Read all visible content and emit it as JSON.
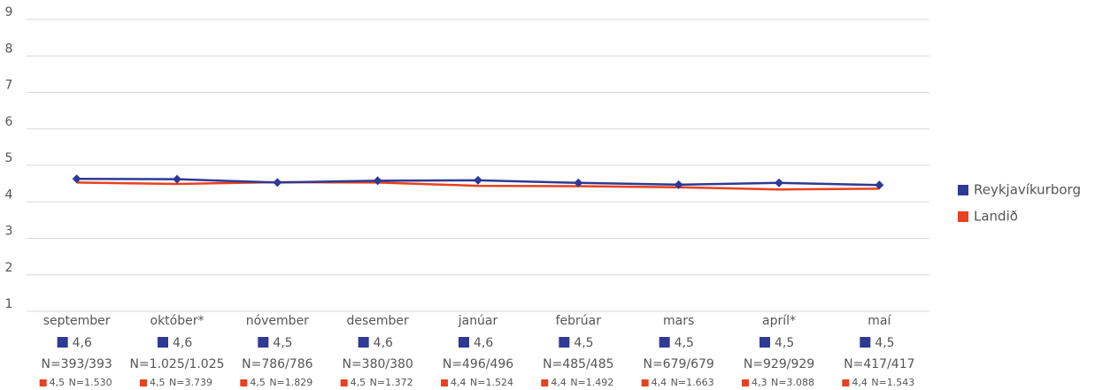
{
  "chart_data": {
    "type": "line",
    "categories": [
      "september",
      "október*",
      "nóvember",
      "desember",
      "janúar",
      "febrúar",
      "mars",
      "apríl*",
      "maí"
    ],
    "series": [
      {
        "name": "Reykjavíkurborg",
        "color": "#2e3a93",
        "values": [
          4.63,
          4.62,
          4.53,
          4.58,
          4.59,
          4.52,
          4.47,
          4.52,
          4.46
        ],
        "value_labels": [
          "4,6",
          "4,6",
          "4,5",
          "4,6",
          "4,6",
          "4,5",
          "4,5",
          "4,5",
          "4,5"
        ],
        "n_labels": [
          "N=393/393",
          "N=1.025/1.025",
          "N=786/786",
          "N=380/380",
          "N=496/496",
          "N=485/485",
          "N=679/679",
          "N=929/929",
          "N=417/417"
        ]
      },
      {
        "name": "Landið",
        "color": "#e8411e",
        "values": [
          4.53,
          4.49,
          4.54,
          4.53,
          4.44,
          4.43,
          4.4,
          4.34,
          4.36
        ],
        "value_labels": [
          "4,5",
          "4,5",
          "4,5",
          "4,5",
          "4,4",
          "4,4",
          "4,4",
          "4,3",
          "4,4"
        ],
        "n_labels": [
          "N=1.530",
          "N=3.739",
          "N=1.829",
          "N=1.372",
          "N=1.524",
          "N=1.492",
          "N=1.663",
          "N=3.088",
          "N=1.543"
        ]
      }
    ],
    "ylim": [
      1,
      9
    ],
    "yticks": [
      1,
      2,
      3,
      4,
      5,
      6,
      7,
      8,
      9
    ],
    "grid": true,
    "legend": "right"
  }
}
